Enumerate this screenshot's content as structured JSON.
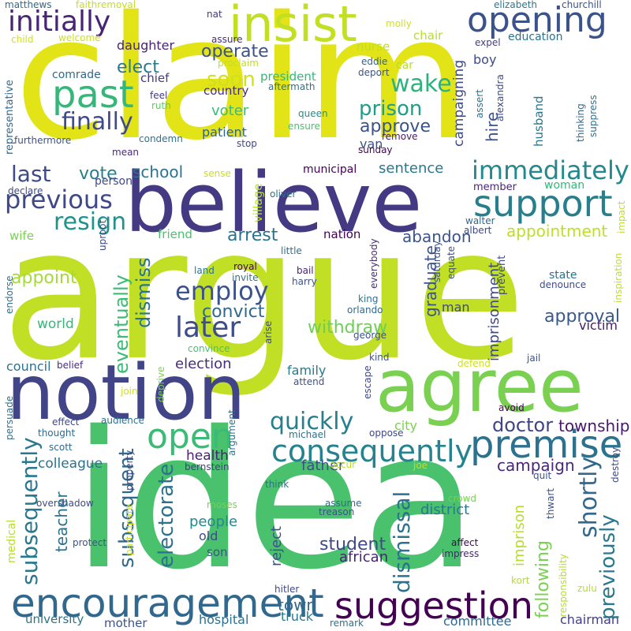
{
  "words": [
    {
      "text": "claim",
      "color": "#e2e418",
      "rot": false
    },
    {
      "text": "argue",
      "color": "#c0df25",
      "rot": false
    },
    {
      "text": "idea",
      "color": "#4ac16d",
      "rot": false
    },
    {
      "text": "believe",
      "color": "#443983",
      "rot": false
    },
    {
      "text": "notion",
      "color": "#414487",
      "rot": false
    },
    {
      "text": "agree",
      "color": "#7ad151",
      "rot": false
    },
    {
      "text": "insist",
      "color": "#c2df23",
      "rot": false
    },
    {
      "text": "opening",
      "color": "#3b528b",
      "rot": false
    },
    {
      "text": "support",
      "color": "#277f8e",
      "rot": false
    },
    {
      "text": "encouragement",
      "color": "#31688e",
      "rot": false
    },
    {
      "text": "suggestion",
      "color": "#440154",
      "rot": false
    },
    {
      "text": "premise",
      "color": "#2c728e",
      "rot": false
    },
    {
      "text": "consequently",
      "color": "#26828e",
      "rot": false
    },
    {
      "text": "past",
      "color": "#35b779",
      "rot": false
    },
    {
      "text": "initially",
      "color": "#482475",
      "rot": false
    },
    {
      "text": "open",
      "color": "#3bbb75",
      "rot": false
    },
    {
      "text": "immediately",
      "color": "#23898e",
      "rot": false
    },
    {
      "text": "previous",
      "color": "#3e4989",
      "rot": false
    },
    {
      "text": "later",
      "color": "#3e4c8a",
      "rot": false
    },
    {
      "text": "finally",
      "color": "#3e4a89",
      "rot": false
    },
    {
      "text": "wake",
      "color": "#2db27d",
      "rot": false
    },
    {
      "text": "soon",
      "color": "#d0e11c",
      "rot": false
    },
    {
      "text": "employ",
      "color": "#3b528b",
      "rot": false
    },
    {
      "text": "resign",
      "color": "#21918c",
      "rot": false
    },
    {
      "text": "quickly",
      "color": "#277f8e",
      "rot": false
    },
    {
      "text": "doctor",
      "color": "#414487",
      "rot": false
    },
    {
      "text": "last",
      "color": "#3e4a89",
      "rot": false
    },
    {
      "text": "prison",
      "color": "#1f9e89",
      "rot": false
    },
    {
      "text": "approve",
      "color": "#3a538b",
      "rot": false
    },
    {
      "text": "campaign",
      "color": "#482878",
      "rot": false
    },
    {
      "text": "operate",
      "color": "#3b528b",
      "rot": false
    },
    {
      "text": "elect",
      "color": "#2a788e",
      "rot": false
    },
    {
      "text": "arrest",
      "color": "#2c728e",
      "rot": false
    },
    {
      "text": "abandon",
      "color": "#3b528b",
      "rot": false
    },
    {
      "text": "appointment",
      "color": "#bddf26",
      "rot": false
    },
    {
      "text": "convict",
      "color": "#31688e",
      "rot": false
    },
    {
      "text": "withdraw",
      "color": "#6ece58",
      "rot": false
    },
    {
      "text": "approval",
      "color": "#38598c",
      "rot": false
    },
    {
      "text": "election",
      "color": "#472d7b",
      "rot": false
    },
    {
      "text": "appoint",
      "color": "#a5db36",
      "rot": false
    },
    {
      "text": "sentence",
      "color": "#2a788e",
      "rot": false
    },
    {
      "text": "school",
      "color": "#2c728e",
      "rot": false
    },
    {
      "text": "vote",
      "color": "#277f8e",
      "rot": false
    },
    {
      "text": "student",
      "color": "#3e4989",
      "rot": false
    },
    {
      "text": "township",
      "color": "#48186a",
      "rot": false
    },
    {
      "text": "district",
      "color": "#2a788e",
      "rot": false
    },
    {
      "text": "people",
      "color": "#23898e",
      "rot": false
    },
    {
      "text": "father",
      "color": "#3d4e8a",
      "rot": false
    },
    {
      "text": "colleague",
      "color": "#2c728e",
      "rot": false
    },
    {
      "text": "health",
      "color": "#482173",
      "rot": false
    },
    {
      "text": "town",
      "color": "#31688e",
      "rot": false
    },
    {
      "text": "african",
      "color": "#482475",
      "rot": false
    },
    {
      "text": "truck",
      "color": "#2a788e",
      "rot": false
    },
    {
      "text": "hospital",
      "color": "#2c728e",
      "rot": false
    },
    {
      "text": "mother",
      "color": "#3b528b",
      "rot": false
    },
    {
      "text": "committee",
      "color": "#31688e",
      "rot": false
    },
    {
      "text": "chairman",
      "color": "#433e85",
      "rot": false
    },
    {
      "text": "university",
      "color": "#2c728e",
      "rot": false
    },
    {
      "text": "council",
      "color": "#2c728e",
      "rot": false
    },
    {
      "text": "world",
      "color": "#35b779",
      "rot": false
    },
    {
      "text": "family",
      "color": "#2a788e",
      "rot": false
    },
    {
      "text": "victim",
      "color": "#481a6c",
      "rot": false
    },
    {
      "text": "president",
      "color": "#35b779",
      "rot": false
    },
    {
      "text": "country",
      "color": "#472c7a",
      "rot": false
    },
    {
      "text": "voter",
      "color": "#3bbb75",
      "rot": false
    },
    {
      "text": "patient",
      "color": "#33638d",
      "rot": false
    },
    {
      "text": "daughter",
      "color": "#482475",
      "rot": false
    },
    {
      "text": "chief",
      "color": "#443983",
      "rot": false
    },
    {
      "text": "comrade",
      "color": "#31688e",
      "rot": false
    },
    {
      "text": "person",
      "color": "#3e4989",
      "rot": false
    },
    {
      "text": "friend",
      "color": "#4ac16d",
      "rot": false
    },
    {
      "text": "wife",
      "color": "#7ad151",
      "rot": false
    },
    {
      "text": "member",
      "color": "#482677",
      "rot": false
    },
    {
      "text": "woman",
      "color": "#35b779",
      "rot": false
    },
    {
      "text": "nation",
      "color": "#440154",
      "rot": false
    },
    {
      "text": "municipal",
      "color": "#440154",
      "rot": false
    },
    {
      "text": "boy",
      "color": "#3e4a89",
      "rot": false
    },
    {
      "text": "nurse",
      "color": "#bddf26",
      "rot": false
    },
    {
      "text": "chair",
      "color": "#b5de2b",
      "rot": false
    },
    {
      "text": "education",
      "color": "#2c728e",
      "rot": false
    },
    {
      "text": "expel",
      "color": "#433e85",
      "rot": false
    },
    {
      "text": "elizabeth",
      "color": "#2a788e",
      "rot": false
    },
    {
      "text": "churchill",
      "color": "#3b528b",
      "rot": false
    },
    {
      "text": "nat",
      "color": "#443983",
      "rot": false
    },
    {
      "text": "molly",
      "color": "#d0e11c",
      "rot": false
    },
    {
      "text": "matthews",
      "color": "#31688e",
      "rot": false
    },
    {
      "text": "faithremoval",
      "color": "#c2df23",
      "rot": false
    },
    {
      "text": "welcome",
      "color": "#cde11d",
      "rot": false
    },
    {
      "text": "child",
      "color": "#d2e21b",
      "rot": false
    },
    {
      "text": "assure",
      "color": "#472c7a",
      "rot": false
    },
    {
      "text": "proclaim",
      "color": "#bddf26",
      "rot": false
    },
    {
      "text": "car",
      "color": "#b5de2b",
      "rot": false
    },
    {
      "text": "eddie",
      "color": "#33638d",
      "rot": false
    },
    {
      "text": "deport",
      "color": "#3b528b",
      "rot": false
    },
    {
      "text": "aftermath",
      "color": "#2c728e",
      "rot": false
    },
    {
      "text": "feel",
      "color": "#443983",
      "rot": false
    },
    {
      "text": "ruth",
      "color": "#5ec962",
      "rot": false
    },
    {
      "text": "queen",
      "color": "#228d8d",
      "rot": false
    },
    {
      "text": "ensure",
      "color": "#4ac16d",
      "rot": false
    },
    {
      "text": "remove",
      "color": "#481a6c",
      "rot": false
    },
    {
      "text": "sunday",
      "color": "#440154",
      "rot": false
    },
    {
      "text": "condemn",
      "color": "#2c728e",
      "rot": false
    },
    {
      "text": "mean",
      "color": "#472c7a",
      "rot": false
    },
    {
      "text": "stop",
      "color": "#3e4989",
      "rot": false
    },
    {
      "text": "furthermore",
      "color": "#3b528b",
      "rot": false
    },
    {
      "text": "sense",
      "color": "#c8e020",
      "rot": false
    },
    {
      "text": "declare",
      "color": "#3e4a89",
      "rot": false
    },
    {
      "text": "oliver",
      "color": "#2c728e",
      "rot": false
    },
    {
      "text": "walter",
      "color": "#31688e",
      "rot": false
    },
    {
      "text": "albert",
      "color": "#3e4989",
      "rot": false
    },
    {
      "text": "little",
      "color": "#2c728e",
      "rot": false
    },
    {
      "text": "land",
      "color": "#2c728e",
      "rot": false
    },
    {
      "text": "royal",
      "color": "#440154",
      "rot": false
    },
    {
      "text": "invite",
      "color": "#2a788e",
      "rot": false
    },
    {
      "text": "bail",
      "color": "#482475",
      "rot": false
    },
    {
      "text": "harry",
      "color": "#3b528b",
      "rot": false
    },
    {
      "text": "state",
      "color": "#2c728e",
      "rot": false
    },
    {
      "text": "denounce",
      "color": "#3e4a89",
      "rot": false
    },
    {
      "text": "king",
      "color": "#2c728e",
      "rot": false
    },
    {
      "text": "orlando",
      "color": "#31688e",
      "rot": false
    },
    {
      "text": "man",
      "color": "#3e4989",
      "rot": false
    },
    {
      "text": "george",
      "color": "#3b528b",
      "rot": false
    },
    {
      "text": "convince",
      "color": "#4ac16d",
      "rot": false
    },
    {
      "text": "kind",
      "color": "#3b528b",
      "rot": false
    },
    {
      "text": "belief",
      "color": "#472c7a",
      "rot": false
    },
    {
      "text": "attend",
      "color": "#3b528b",
      "rot": false
    },
    {
      "text": "defend",
      "color": "#d0e11c",
      "rot": false
    },
    {
      "text": "jail",
      "color": "#3b528b",
      "rot": false
    },
    {
      "text": "join",
      "color": "#d0e11c",
      "rot": false
    },
    {
      "text": "avoid",
      "color": "#440154",
      "rot": false
    },
    {
      "text": "effect",
      "color": "#3e4989",
      "rot": false
    },
    {
      "text": "audience",
      "color": "#2c728e",
      "rot": false
    },
    {
      "text": "thought",
      "color": "#31688e",
      "rot": false
    },
    {
      "text": "city",
      "color": "#7ad151",
      "rot": false
    },
    {
      "text": "michael",
      "color": "#2c728e",
      "rot": false
    },
    {
      "text": "oppose",
      "color": "#3e4989",
      "rot": false
    },
    {
      "text": "scott",
      "color": "#31688e",
      "rot": false
    },
    {
      "text": "bernstein",
      "color": "#433e85",
      "rot": false
    },
    {
      "text": "joe",
      "color": "#c2df23",
      "rot": false
    },
    {
      "text": "occur",
      "color": "#b5de2b",
      "rot": false
    },
    {
      "text": "quit",
      "color": "#3b528b",
      "rot": false
    },
    {
      "text": "think",
      "color": "#2c728e",
      "rot": false
    },
    {
      "text": "assume",
      "color": "#31688e",
      "rot": false
    },
    {
      "text": "treason",
      "color": "#3b528b",
      "rot": false
    },
    {
      "text": "crowd",
      "color": "#7ad151",
      "rot": false
    },
    {
      "text": "moses",
      "color": "#7ad151",
      "rot": false
    },
    {
      "text": "old",
      "color": "#3e4989",
      "rot": false
    },
    {
      "text": "son",
      "color": "#3b528b",
      "rot": false
    },
    {
      "text": "affect",
      "color": "#440154",
      "rot": false
    },
    {
      "text": "impress",
      "color": "#482475",
      "rot": false
    },
    {
      "text": "hitler",
      "color": "#3e4989",
      "rot": false
    },
    {
      "text": "kort",
      "color": "#b5de2b",
      "rot": false
    },
    {
      "text": "zulu",
      "color": "#b5de2b",
      "rot": false
    },
    {
      "text": "remark",
      "color": "#2c728e",
      "rot": false
    },
    {
      "text": "protect",
      "color": "#3b528b",
      "rot": false
    },
    {
      "text": "overshadow",
      "color": "#3e4989",
      "rot": false
    },
    {
      "text": "representative",
      "color": "#31688e",
      "rot": true
    },
    {
      "text": "campaigning",
      "color": "#3e4989",
      "rot": true
    },
    {
      "text": "hire",
      "color": "#3b528b",
      "rot": true
    },
    {
      "text": "husband",
      "color": "#2a788e",
      "rot": true
    },
    {
      "text": "alexandra",
      "color": "#3e4989",
      "rot": true
    },
    {
      "text": "assert",
      "color": "#2c728e",
      "rot": true
    },
    {
      "text": "thinking",
      "color": "#31688e",
      "rot": true
    },
    {
      "text": "suppress",
      "color": "#2c728e",
      "rot": true
    },
    {
      "text": "impact",
      "color": "#c2df23",
      "rot": true
    },
    {
      "text": "inspiration",
      "color": "#c2df23",
      "rot": true
    },
    {
      "text": "prevent",
      "color": "#3e4989",
      "rot": true
    },
    {
      "text": "equate",
      "color": "#3b528b",
      "rot": true
    },
    {
      "text": "saturday",
      "color": "#3b528b",
      "rot": true
    },
    {
      "text": "everybody",
      "color": "#472c7a",
      "rot": true
    },
    {
      "text": "village",
      "color": "#b5de2b",
      "rot": true
    },
    {
      "text": "uproot",
      "color": "#3e4989",
      "rot": true
    },
    {
      "text": "eventually",
      "color": "#3bbb75",
      "rot": true
    },
    {
      "text": "dismiss",
      "color": "#2c728e",
      "rot": true
    },
    {
      "text": "electorate",
      "color": "#2c728e",
      "rot": true
    },
    {
      "text": "subsequent",
      "color": "#31688e",
      "rot": true
    },
    {
      "text": "subsequently",
      "color": "#2a788e",
      "rot": true
    },
    {
      "text": "teacher",
      "color": "#2c728e",
      "rot": true
    },
    {
      "text": "graduate",
      "color": "#3b528b",
      "rot": true
    },
    {
      "text": "imprisonment",
      "color": "#3e4989",
      "rot": true
    },
    {
      "text": "dismissal",
      "color": "#2c728e",
      "rot": true
    },
    {
      "text": "reject",
      "color": "#3b528b",
      "rot": true
    },
    {
      "text": "following",
      "color": "#7ad151",
      "rot": true
    },
    {
      "text": "imprison",
      "color": "#b5de2b",
      "rot": true
    },
    {
      "text": "shortly",
      "color": "#31688e",
      "rot": true
    },
    {
      "text": "previously",
      "color": "#2a788e",
      "rot": true
    },
    {
      "text": "responsibility",
      "color": "#b5de2b",
      "rot": true
    },
    {
      "text": "thwart",
      "color": "#3b528b",
      "rot": true
    },
    {
      "text": "destroy",
      "color": "#3e4989",
      "rot": true
    },
    {
      "text": "property",
      "color": "#3e4989",
      "rot": true
    },
    {
      "text": "participate",
      "color": "#d0e11c",
      "rot": true
    },
    {
      "text": "argument",
      "color": "#2c728e",
      "rot": true
    },
    {
      "text": "deprive",
      "color": "#7ad151",
      "rot": true
    },
    {
      "text": "arise",
      "color": "#3e4989",
      "rot": true
    },
    {
      "text": "escape",
      "color": "#3e4989",
      "rot": true
    },
    {
      "text": "endorse",
      "color": "#2c728e",
      "rot": true
    },
    {
      "text": "persuade",
      "color": "#2c728e",
      "rot": true
    },
    {
      "text": "medical",
      "color": "#b5de2b",
      "rot": true
    },
    {
      "text": "van",
      "color": "#3b528b",
      "rot": false
    }
  ]
}
